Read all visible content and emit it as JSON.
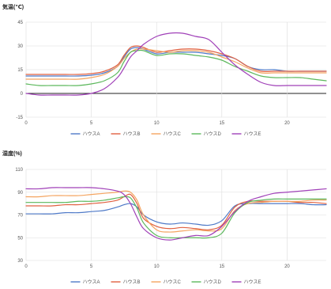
{
  "chart_data": [
    {
      "type": "line",
      "title": "気温(℃)",
      "xlim": [
        0,
        23
      ],
      "ylim": [
        -15,
        45
      ],
      "xticks": [
        0,
        5,
        10,
        15,
        20
      ],
      "yticks": [
        -15,
        0,
        15,
        30,
        45
      ],
      "grid": true,
      "legend_position": "bottom",
      "x": [
        0,
        1,
        2,
        3,
        4,
        5,
        6,
        7,
        7.5,
        8,
        8.5,
        9,
        10,
        11,
        12,
        13,
        14,
        15,
        16,
        17,
        18,
        19,
        20,
        21,
        22,
        23
      ],
      "series": [
        {
          "name": "ハウスA",
          "color": "#4e79c7",
          "values": [
            11,
            11,
            11,
            11,
            11,
            11.5,
            13,
            17,
            23,
            28,
            29,
            28,
            25,
            26,
            26,
            26,
            25,
            24,
            22,
            17,
            15,
            15,
            14,
            14,
            14,
            14
          ]
        },
        {
          "name": "ハウスB",
          "color": "#e06040",
          "values": [
            12,
            12,
            12,
            12,
            12,
            12.5,
            14,
            18,
            24,
            29,
            30,
            29,
            26,
            27,
            28,
            28,
            27,
            25,
            22,
            17,
            14,
            14,
            14,
            14,
            14,
            14
          ]
        },
        {
          "name": "ハウスC",
          "color": "#f4a460",
          "values": [
            9,
            9,
            9,
            9,
            9,
            10,
            12,
            17,
            22,
            26,
            28,
            28,
            27,
            26,
            27,
            27,
            26,
            23,
            20,
            16,
            13,
            13,
            13,
            13,
            13,
            13
          ]
        },
        {
          "name": "ハウスD",
          "color": "#5cb85c",
          "values": [
            6,
            5,
            5,
            5,
            5,
            6,
            8,
            13,
            20,
            26,
            27,
            27,
            24,
            25,
            25,
            24,
            23,
            21,
            17,
            14,
            11,
            10,
            10,
            10,
            9,
            8
          ]
        },
        {
          "name": "ハウスE",
          "color": "#a040b8",
          "values": [
            0,
            -1,
            -1,
            -1,
            -1,
            0,
            3,
            10,
            16,
            23,
            27,
            31,
            36,
            38,
            38,
            36,
            34,
            26,
            18,
            12,
            7,
            5,
            5,
            5,
            5,
            5
          ]
        }
      ]
    },
    {
      "type": "line",
      "title": "湿度(%)",
      "xlim": [
        0,
        23
      ],
      "ylim": [
        30,
        110
      ],
      "xticks": [
        0,
        5,
        10,
        15,
        20
      ],
      "yticks": [
        30,
        50,
        70,
        90,
        110
      ],
      "grid": true,
      "legend_position": "bottom",
      "x": [
        0,
        1,
        2,
        3,
        4,
        5,
        6,
        7,
        7.5,
        8,
        8.5,
        9,
        10,
        11,
        12,
        13,
        14,
        15,
        16,
        17,
        18,
        19,
        20,
        21,
        22,
        23
      ],
      "series": [
        {
          "name": "ハウスA",
          "color": "#4e79c7",
          "values": [
            71,
            71,
            71,
            72,
            72,
            73,
            74,
            77,
            79,
            80,
            77,
            70,
            64,
            62,
            63,
            62,
            61,
            65,
            78,
            80,
            80,
            80,
            80,
            80,
            79,
            79
          ]
        },
        {
          "name": "ハウスB",
          "color": "#e06040",
          "values": [
            78,
            78,
            78,
            79,
            79,
            80,
            81,
            83,
            86,
            88,
            80,
            67,
            60,
            58,
            59,
            58,
            57,
            61,
            77,
            82,
            82,
            82,
            82,
            81,
            81,
            80
          ]
        },
        {
          "name": "ハウスC",
          "color": "#f4a460",
          "values": [
            86,
            86,
            87,
            87,
            87,
            88,
            89,
            90,
            91,
            90,
            83,
            70,
            57,
            55,
            56,
            57,
            56,
            58,
            74,
            80,
            81,
            82,
            82,
            82,
            83,
            83
          ]
        },
        {
          "name": "ハウスD",
          "color": "#5cb85c",
          "values": [
            81,
            81,
            81,
            81,
            82,
            82,
            83,
            85,
            86,
            85,
            76,
            63,
            52,
            50,
            50,
            50,
            50,
            54,
            72,
            81,
            83,
            84,
            84,
            84,
            84,
            84
          ]
        },
        {
          "name": "ハウスE",
          "color": "#a040b8",
          "values": [
            93,
            93,
            94,
            94,
            94,
            94,
            93,
            91,
            88,
            80,
            68,
            58,
            50,
            48,
            50,
            52,
            52,
            60,
            73,
            82,
            86,
            89,
            90,
            91,
            92,
            93
          ]
        }
      ]
    }
  ]
}
